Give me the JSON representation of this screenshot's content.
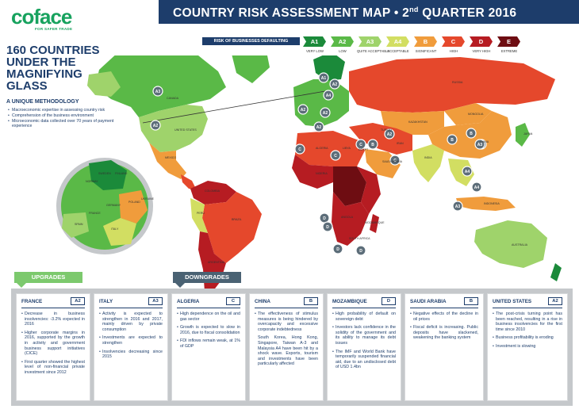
{
  "header": {
    "logo_text": "coface",
    "logo_tagline": "FOR SAFER TRADE",
    "title_main": "COUNTRY RISK ASSESSMENT MAP • 2",
    "title_sup": "nd",
    "title_rest": " QUARTER 2016"
  },
  "legend": {
    "title": "RISK OF BUSINESSES DEFAULTING",
    "items": [
      {
        "code": "A1",
        "label": "VERY LOW",
        "color": "#1b8a3a"
      },
      {
        "code": "A2",
        "label": "LOW",
        "color": "#5ab947"
      },
      {
        "code": "A3",
        "label": "QUITE ACCEPTABLE",
        "color": "#9fd36b"
      },
      {
        "code": "A4",
        "label": "ACCEPTABLE",
        "color": "#d2de62"
      },
      {
        "code": "B",
        "label": "SIGNIFICANT",
        "color": "#f09c3c"
      },
      {
        "code": "C",
        "label": "HIGH",
        "color": "#e5482c"
      },
      {
        "code": "D",
        "label": "VERY HIGH",
        "color": "#b61c22"
      },
      {
        "code": "E",
        "label": "EXTREME",
        "color": "#6e0d12"
      }
    ]
  },
  "intro": {
    "headline": [
      "160 COUNTRIES",
      "UNDER THE",
      "MAGNIFYING",
      "GLASS"
    ],
    "method_title": "A UNIQUE METHODOLOGY",
    "method_items": [
      "Macroeconomic expertise in assessing country risk",
      "Comprehension of the business environment",
      "Microeconomic data collected over 70 years of payment experience"
    ]
  },
  "map": {
    "badges": [
      "A3",
      "A2",
      "A2",
      "A4",
      "A2",
      "A1",
      "A2",
      "A2",
      "B",
      "B",
      "A3",
      "C",
      "C",
      "C",
      "D",
      "D",
      "D",
      "D",
      "A4",
      "A3",
      "A4",
      "A3",
      "B",
      "A2",
      "C"
    ],
    "labels": [
      "CANADA",
      "UNITED STATES",
      "MEXICO",
      "BRAZIL",
      "RUSSIA",
      "CHINA",
      "INDIA",
      "KAZAKHSTAN",
      "ALGERIA",
      "LIBYA",
      "EGYPT",
      "SAUDI ARABIA",
      "NIGERIA",
      "MOZAMBIQUE",
      "ANGOLA",
      "SOUTH AFRICA",
      "AUSTRALIA",
      "ARGENTINA",
      "PERU",
      "COLOMBIA",
      "JAPAN",
      "INDONESIA",
      "FINLAND",
      "SWEDEN",
      "NORWAY",
      "SPAIN",
      "FRANCE",
      "GERMANY",
      "ITALY",
      "POLAND",
      "UKRAINE",
      "TURKEY",
      "IRAN",
      "MONGOLIA"
    ]
  },
  "tabs": {
    "upgrades": "UPGRADES",
    "downgrades": "DOWNGRADES"
  },
  "panels": [
    {
      "country": "FRANCE",
      "rating": "A2",
      "bullets": [
        "Decrease in business insolvencies: -3.2% expected in 2016",
        "Higher corporate margins in 2016, supported by the growth in activity and government business support initiatives (CICE)",
        "First quarter showed the highest level of non-financial private investment since 2012"
      ]
    },
    {
      "country": "ITALY",
      "rating": "A3",
      "bullets": [
        "Activity is expected to strengthen in 2016 and 2017, mainly driven by private consumption",
        "Investments are expected to strengthen",
        "Insolvencies decreasing since 2015"
      ]
    },
    {
      "country": "ALGERIA",
      "rating": "C",
      "bullets": [
        "High dependence on the oil and gas sector",
        "Growth is expected to slow in 2016, due to fiscal consolidation",
        "FDI inflows remain weak, at 1% of GDP"
      ]
    },
    {
      "country": "CHINA",
      "rating": "B",
      "bullets": [
        "The effectiveness of stimulus measures is being hindered by overcapacity and excessive corporate indebtedness",
        "South Korea, Hong Kong, Singapore, Taiwan A-3 and Malaysia A4 have been hit by a shock wave. Exports, tourism and investments have been particularly affected"
      ]
    },
    {
      "country": "MOZAMBIQUE",
      "rating": "D",
      "bullets": [
        "High probability of default on sovereign debt",
        "Investors lack confidence in the solidity of the government and its ability to manage its debt issues",
        "The IMF and World Bank have temporarily suspended financial aid, due to an undisclosed debt of USD 1.4bn"
      ]
    },
    {
      "country": "SAUDI ARABIA",
      "rating": "B",
      "bullets": [
        "Negative effects of the decline in oil prices",
        "Fiscal deficit is increasing. Public deposits have slackened, weakening the banking system"
      ]
    },
    {
      "country": "UNITED STATES",
      "rating": "A2",
      "bullets": [
        "The post-crisis turning point has been reached, resulting in a rise in business insolvencies for the first time since 2010",
        "Business profitability is eroding",
        "Investment is slowing"
      ]
    }
  ]
}
